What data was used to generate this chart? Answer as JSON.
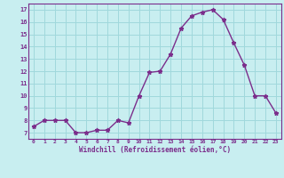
{
  "x": [
    0,
    1,
    2,
    3,
    4,
    5,
    6,
    7,
    8,
    9,
    10,
    11,
    12,
    13,
    14,
    15,
    16,
    17,
    18,
    19,
    20,
    21,
    22,
    23
  ],
  "y": [
    7.5,
    8.0,
    8.0,
    8.0,
    7.0,
    7.0,
    7.2,
    7.2,
    8.0,
    7.8,
    10.0,
    11.9,
    12.0,
    13.4,
    15.5,
    16.5,
    16.8,
    17.0,
    16.2,
    14.3,
    12.5,
    10.0,
    10.0,
    8.6
  ],
  "line_color": "#7b2d8b",
  "marker": "*",
  "marker_size": 3.5,
  "bg_color": "#c8eef0",
  "grid_color": "#a0d8dc",
  "xlabel": "Windchill (Refroidissement éolien,°C)",
  "xlim": [
    -0.5,
    23.5
  ],
  "ylim": [
    6.5,
    17.5
  ],
  "yticks": [
    7,
    8,
    9,
    10,
    11,
    12,
    13,
    14,
    15,
    16,
    17
  ],
  "xticks": [
    0,
    1,
    2,
    3,
    4,
    5,
    6,
    7,
    8,
    9,
    10,
    11,
    12,
    13,
    14,
    15,
    16,
    17,
    18,
    19,
    20,
    21,
    22,
    23
  ],
  "tick_color": "#7b2d8b",
  "label_color": "#7b2d8b",
  "spine_color": "#7b2d8b"
}
